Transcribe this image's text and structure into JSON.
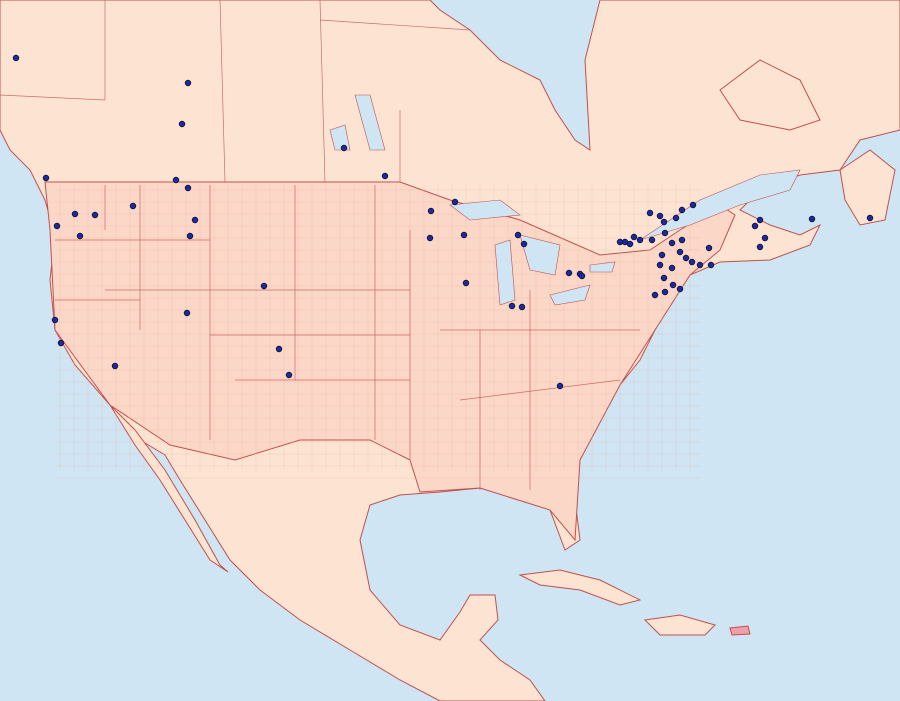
{
  "map": {
    "colors": {
      "ocean": "#cfe5f3",
      "land": "#fde4d2",
      "us_land": "#fbd7c7",
      "border": "#c0504d",
      "county_border": "#e9a9a0",
      "lake": "#cfe5f3",
      "marker_fill": "#1f2a9a",
      "marker_stroke": "#0a0f3a",
      "highlight_territory": "#f0a0a8"
    },
    "marker_icon": "circle-dot",
    "legend": null
  }
}
